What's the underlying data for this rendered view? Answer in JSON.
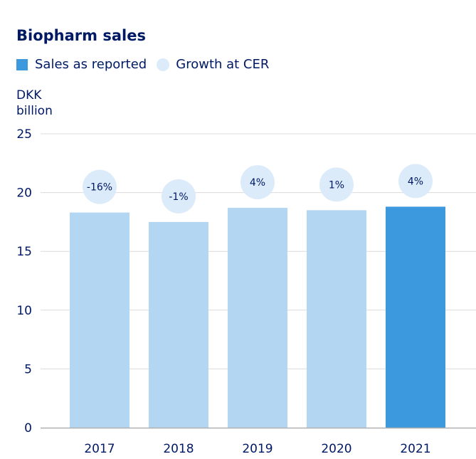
{
  "chart_data": {
    "type": "bar",
    "title": "Biopharm sales",
    "ylabel_line1": "DKK",
    "ylabel_line2": "billion",
    "xlabel": "",
    "ylim": [
      0,
      25
    ],
    "yticks": [
      0,
      5,
      10,
      15,
      20,
      25
    ],
    "grid": true,
    "legend": [
      {
        "label": "Sales as reported",
        "marker": "square",
        "color": "#3d99de"
      },
      {
        "label": "Growth at CER",
        "marker": "circle",
        "color": "#dcebf9"
      }
    ],
    "categories": [
      "2017",
      "2018",
      "2019",
      "2020",
      "2021"
    ],
    "series": [
      {
        "name": "Sales as reported",
        "values": [
          18.3,
          17.5,
          18.7,
          18.5,
          18.8
        ]
      }
    ],
    "growth_labels": [
      "-16%",
      "-1%",
      "4%",
      "1%",
      "4%"
    ],
    "bar_colors": [
      "#b3d6f2",
      "#b3d6f2",
      "#b3d6f2",
      "#b3d6f2",
      "#3d99de"
    ]
  },
  "colors": {
    "text": "#001965",
    "grid": "#dcdcdc",
    "axis": "#b0b0b0",
    "bubble": "#dcebf9"
  }
}
